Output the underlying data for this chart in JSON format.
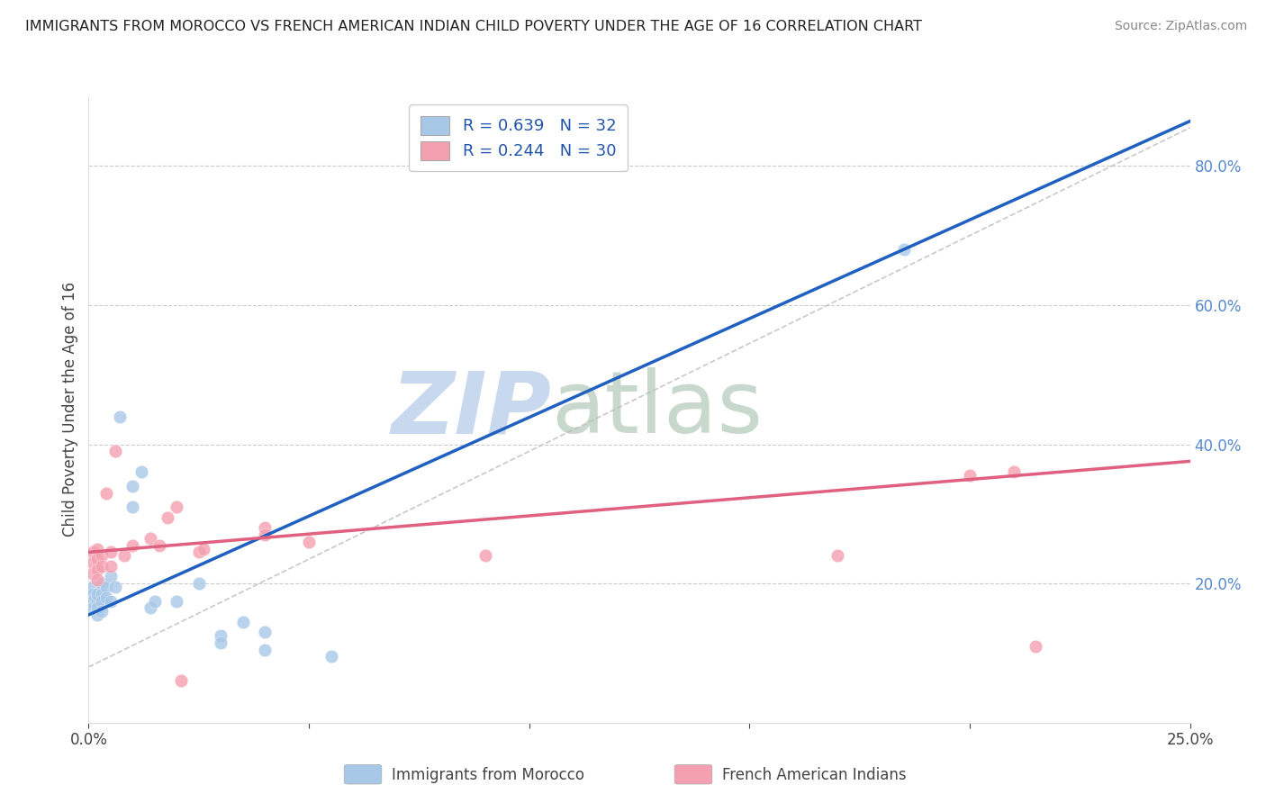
{
  "title": "IMMIGRANTS FROM MOROCCO VS FRENCH AMERICAN INDIAN CHILD POVERTY UNDER THE AGE OF 16 CORRELATION CHART",
  "source": "Source: ZipAtlas.com",
  "ylabel": "Child Poverty Under the Age of 16",
  "xlabel_blue": "Immigrants from Morocco",
  "xlabel_pink": "French American Indians",
  "xlim": [
    0.0,
    0.25
  ],
  "ylim": [
    0.0,
    0.9
  ],
  "right_yticks": [
    0.2,
    0.4,
    0.6,
    0.8
  ],
  "right_yticklabels": [
    "20.0%",
    "40.0%",
    "60.0%",
    "80.0%"
  ],
  "xticks": [
    0.0,
    0.05,
    0.1,
    0.15,
    0.2,
    0.25
  ],
  "xticklabels": [
    "0.0%",
    "",
    "",
    "",
    "",
    "25.0%"
  ],
  "blue_R": 0.639,
  "blue_N": 32,
  "pink_R": 0.244,
  "pink_N": 30,
  "blue_color": "#a8c8e8",
  "pink_color": "#f4a0b0",
  "trend_blue": "#2060c0",
  "trend_pink": "#e06080",
  "ref_line_color": "#bbbbbb",
  "watermark_zip": "ZIP",
  "watermark_atlas": "atlas",
  "watermark_color_zip": "#c8d8ee",
  "watermark_color_atlas": "#c8d8cc",
  "blue_scatter": [
    [
      0.001,
      0.195
    ],
    [
      0.001,
      0.185
    ],
    [
      0.001,
      0.175
    ],
    [
      0.001,
      0.165
    ],
    [
      0.002,
      0.175
    ],
    [
      0.002,
      0.185
    ],
    [
      0.002,
      0.165
    ],
    [
      0.002,
      0.155
    ],
    [
      0.003,
      0.2
    ],
    [
      0.003,
      0.185
    ],
    [
      0.003,
      0.175
    ],
    [
      0.003,
      0.16
    ],
    [
      0.004,
      0.195
    ],
    [
      0.004,
      0.18
    ],
    [
      0.005,
      0.21
    ],
    [
      0.005,
      0.175
    ],
    [
      0.006,
      0.195
    ],
    [
      0.007,
      0.44
    ],
    [
      0.01,
      0.34
    ],
    [
      0.01,
      0.31
    ],
    [
      0.012,
      0.36
    ],
    [
      0.014,
      0.165
    ],
    [
      0.015,
      0.175
    ],
    [
      0.02,
      0.175
    ],
    [
      0.025,
      0.2
    ],
    [
      0.03,
      0.125
    ],
    [
      0.03,
      0.115
    ],
    [
      0.035,
      0.145
    ],
    [
      0.04,
      0.13
    ],
    [
      0.04,
      0.105
    ],
    [
      0.055,
      0.095
    ],
    [
      0.185,
      0.68
    ]
  ],
  "pink_scatter": [
    [
      0.001,
      0.245
    ],
    [
      0.001,
      0.23
    ],
    [
      0.001,
      0.215
    ],
    [
      0.002,
      0.25
    ],
    [
      0.002,
      0.235
    ],
    [
      0.002,
      0.22
    ],
    [
      0.002,
      0.205
    ],
    [
      0.003,
      0.24
    ],
    [
      0.003,
      0.225
    ],
    [
      0.004,
      0.33
    ],
    [
      0.005,
      0.245
    ],
    [
      0.005,
      0.225
    ],
    [
      0.006,
      0.39
    ],
    [
      0.008,
      0.24
    ],
    [
      0.01,
      0.255
    ],
    [
      0.014,
      0.265
    ],
    [
      0.016,
      0.255
    ],
    [
      0.018,
      0.295
    ],
    [
      0.02,
      0.31
    ],
    [
      0.021,
      0.06
    ],
    [
      0.025,
      0.245
    ],
    [
      0.026,
      0.25
    ],
    [
      0.04,
      0.28
    ],
    [
      0.04,
      0.27
    ],
    [
      0.05,
      0.26
    ],
    [
      0.09,
      0.24
    ],
    [
      0.17,
      0.24
    ],
    [
      0.2,
      0.355
    ],
    [
      0.21,
      0.36
    ],
    [
      0.215,
      0.11
    ]
  ]
}
